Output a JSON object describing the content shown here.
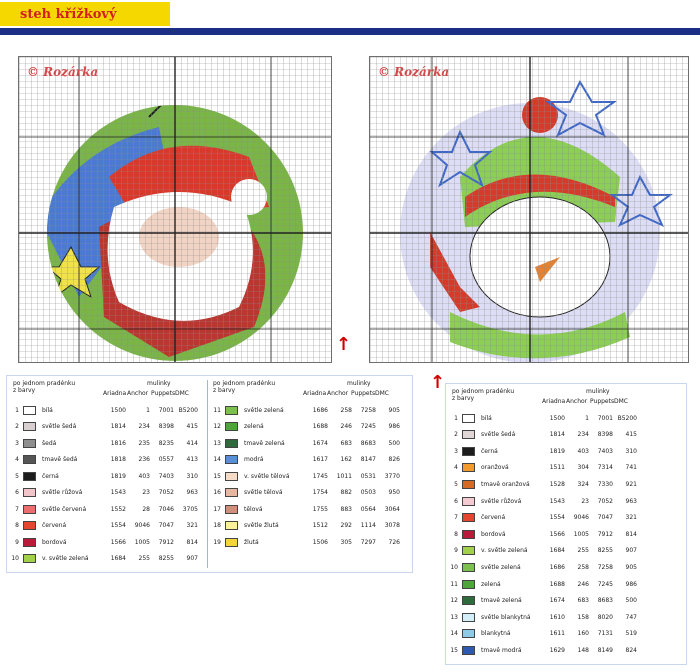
{
  "header": {
    "title": "steh křížkový"
  },
  "watermark": {
    "text": "© Rozárka"
  },
  "charts": [
    {
      "name": "Santa",
      "colors": {
        "skin": "#f2d4c5",
        "beard": "#ffffff",
        "hat": "#d73a2b",
        "green": "#7ab54a",
        "blue": "#4a7bd0",
        "yellow": "#f2e24a",
        "brown": "#b8372f",
        "dark": "#222222"
      }
    },
    {
      "name": "Snowman",
      "colors": {
        "hat1": "#8ccf54",
        "hat2": "#d73a2b",
        "bg": "#d7d9f4",
        "star": "#3d67c9",
        "carrot": "#e38231",
        "dark": "#222222"
      }
    }
  ],
  "legend_left": {
    "header_left": "po jednom pradénku\nz barvy",
    "header_right_title": "mulinky",
    "columns": [
      "Ariadna",
      "Anchor",
      "Puppets",
      "DMC"
    ],
    "rows": [
      {
        "n": "1",
        "name": "bílá",
        "a": "1500",
        "b": "1",
        "c": "7001",
        "d": "B5200",
        "color": "#ffffff"
      },
      {
        "n": "2",
        "name": "světle šedá",
        "a": "1814",
        "b": "234",
        "c": "8398",
        "d": "415",
        "color": "#d8d0d0"
      },
      {
        "n": "3",
        "name": "šedá",
        "a": "1816",
        "b": "235",
        "c": "8235",
        "d": "414",
        "color": "#8e8e8e"
      },
      {
        "n": "4",
        "name": "tmavě šedá",
        "a": "1818",
        "b": "236",
        "c": "0557",
        "d": "413",
        "color": "#555555"
      },
      {
        "n": "5",
        "name": "černá",
        "a": "1819",
        "b": "403",
        "c": "7403",
        "d": "310",
        "color": "#1c1c1c"
      },
      {
        "n": "6",
        "name": "světle růžová",
        "a": "1543",
        "b": "23",
        "c": "7052",
        "d": "963",
        "color": "#f1c4c9"
      },
      {
        "n": "7",
        "name": "světle červená",
        "a": "1552",
        "b": "28",
        "c": "7046",
        "d": "3705",
        "color": "#ed6e6e"
      },
      {
        "n": "8",
        "name": "červená",
        "a": "1554",
        "b": "9046",
        "c": "7047",
        "d": "321",
        "color": "#e4452e"
      },
      {
        "n": "9",
        "name": "bordová",
        "a": "1566",
        "b": "1005",
        "c": "7912",
        "d": "814",
        "color": "#b91a3a"
      },
      {
        "n": "10",
        "name": "v. světle zelená",
        "a": "1684",
        "b": "255",
        "c": "8255",
        "d": "907",
        "color": "#a3d04a"
      }
    ],
    "rows2": [
      {
        "n": "11",
        "name": "světle zelená",
        "a": "1686",
        "b": "258",
        "c": "7258",
        "d": "905",
        "color": "#7cc04d"
      },
      {
        "n": "12",
        "name": "zelená",
        "a": "1688",
        "b": "246",
        "c": "7245",
        "d": "986",
        "color": "#4ea53a"
      },
      {
        "n": "13",
        "name": "tmavě zelená",
        "a": "1674",
        "b": "683",
        "c": "8683",
        "d": "500",
        "color": "#2e6a3b"
      },
      {
        "n": "14",
        "name": "modrá",
        "a": "1617",
        "b": "162",
        "c": "8147",
        "d": "826",
        "color": "#5a8fd6"
      },
      {
        "n": "15",
        "name": "v. světle tělová",
        "a": "1745",
        "b": "1011",
        "c": "0531",
        "d": "3770",
        "color": "#f6dcc6"
      },
      {
        "n": "16",
        "name": "světle tělová",
        "a": "1754",
        "b": "882",
        "c": "0503",
        "d": "950",
        "color": "#e9b6a1"
      },
      {
        "n": "17",
        "name": "tělová",
        "a": "1755",
        "b": "883",
        "c": "0564",
        "d": "3064",
        "color": "#cf8f7a"
      },
      {
        "n": "18",
        "name": "světle žlutá",
        "a": "1512",
        "b": "292",
        "c": "1114",
        "d": "3078",
        "color": "#fbf39a"
      },
      {
        "n": "19",
        "name": "žlutá",
        "a": "1506",
        "b": "305",
        "c": "7297",
        "d": "726",
        "color": "#f4d53c"
      }
    ]
  },
  "legend_right": {
    "header_left": "po jednom pradénku\nz barvy",
    "header_right_title": "mulinky",
    "columns": [
      "Ariadna",
      "Anchor",
      "Puppets",
      "DMC"
    ],
    "rows": [
      {
        "n": "1",
        "name": "bílá",
        "a": "1500",
        "b": "1",
        "c": "7001",
        "d": "B5200",
        "color": "#ffffff"
      },
      {
        "n": "2",
        "name": "světle šedá",
        "a": "1814",
        "b": "234",
        "c": "8398",
        "d": "415",
        "color": "#e0d6d6"
      },
      {
        "n": "3",
        "name": "černá",
        "a": "1819",
        "b": "403",
        "c": "7403",
        "d": "310",
        "color": "#1c1c1c"
      },
      {
        "n": "4",
        "name": "oranžová",
        "a": "1511",
        "b": "304",
        "c": "7314",
        "d": "741",
        "color": "#f39a2d"
      },
      {
        "n": "5",
        "name": "tmavě oranžová",
        "a": "1528",
        "b": "324",
        "c": "7330",
        "d": "921",
        "color": "#d66a25"
      },
      {
        "n": "6",
        "name": "světle růžová",
        "a": "1543",
        "b": "23",
        "c": "7052",
        "d": "963",
        "color": "#f3c9d2"
      },
      {
        "n": "7",
        "name": "červená",
        "a": "1554",
        "b": "9046",
        "c": "7047",
        "d": "321",
        "color": "#e4452e"
      },
      {
        "n": "8",
        "name": "bordová",
        "a": "1566",
        "b": "1005",
        "c": "7912",
        "d": "814",
        "color": "#b91a3a"
      },
      {
        "n": "9",
        "name": "v. světle zelená",
        "a": "1684",
        "b": "255",
        "c": "8255",
        "d": "907",
        "color": "#a3d04a"
      },
      {
        "n": "10",
        "name": "světle zelená",
        "a": "1686",
        "b": "258",
        "c": "7258",
        "d": "905",
        "color": "#7cc04d"
      },
      {
        "n": "11",
        "name": "zelená",
        "a": "1688",
        "b": "246",
        "c": "7245",
        "d": "986",
        "color": "#4ea53a"
      },
      {
        "n": "12",
        "name": "tmavě zelená",
        "a": "1674",
        "b": "683",
        "c": "8683",
        "d": "500",
        "color": "#2e6a3b"
      },
      {
        "n": "13",
        "name": "světle blankytná",
        "a": "1610",
        "b": "158",
        "c": "8020",
        "d": "747",
        "color": "#d4eef7"
      },
      {
        "n": "14",
        "name": "blankytná",
        "a": "1611",
        "b": "160",
        "c": "7131",
        "d": "519",
        "color": "#8ecae6"
      },
      {
        "n": "15",
        "name": "tmavě modrá",
        "a": "1629",
        "b": "148",
        "c": "8149",
        "d": "824",
        "color": "#2d5ab0"
      }
    ]
  }
}
